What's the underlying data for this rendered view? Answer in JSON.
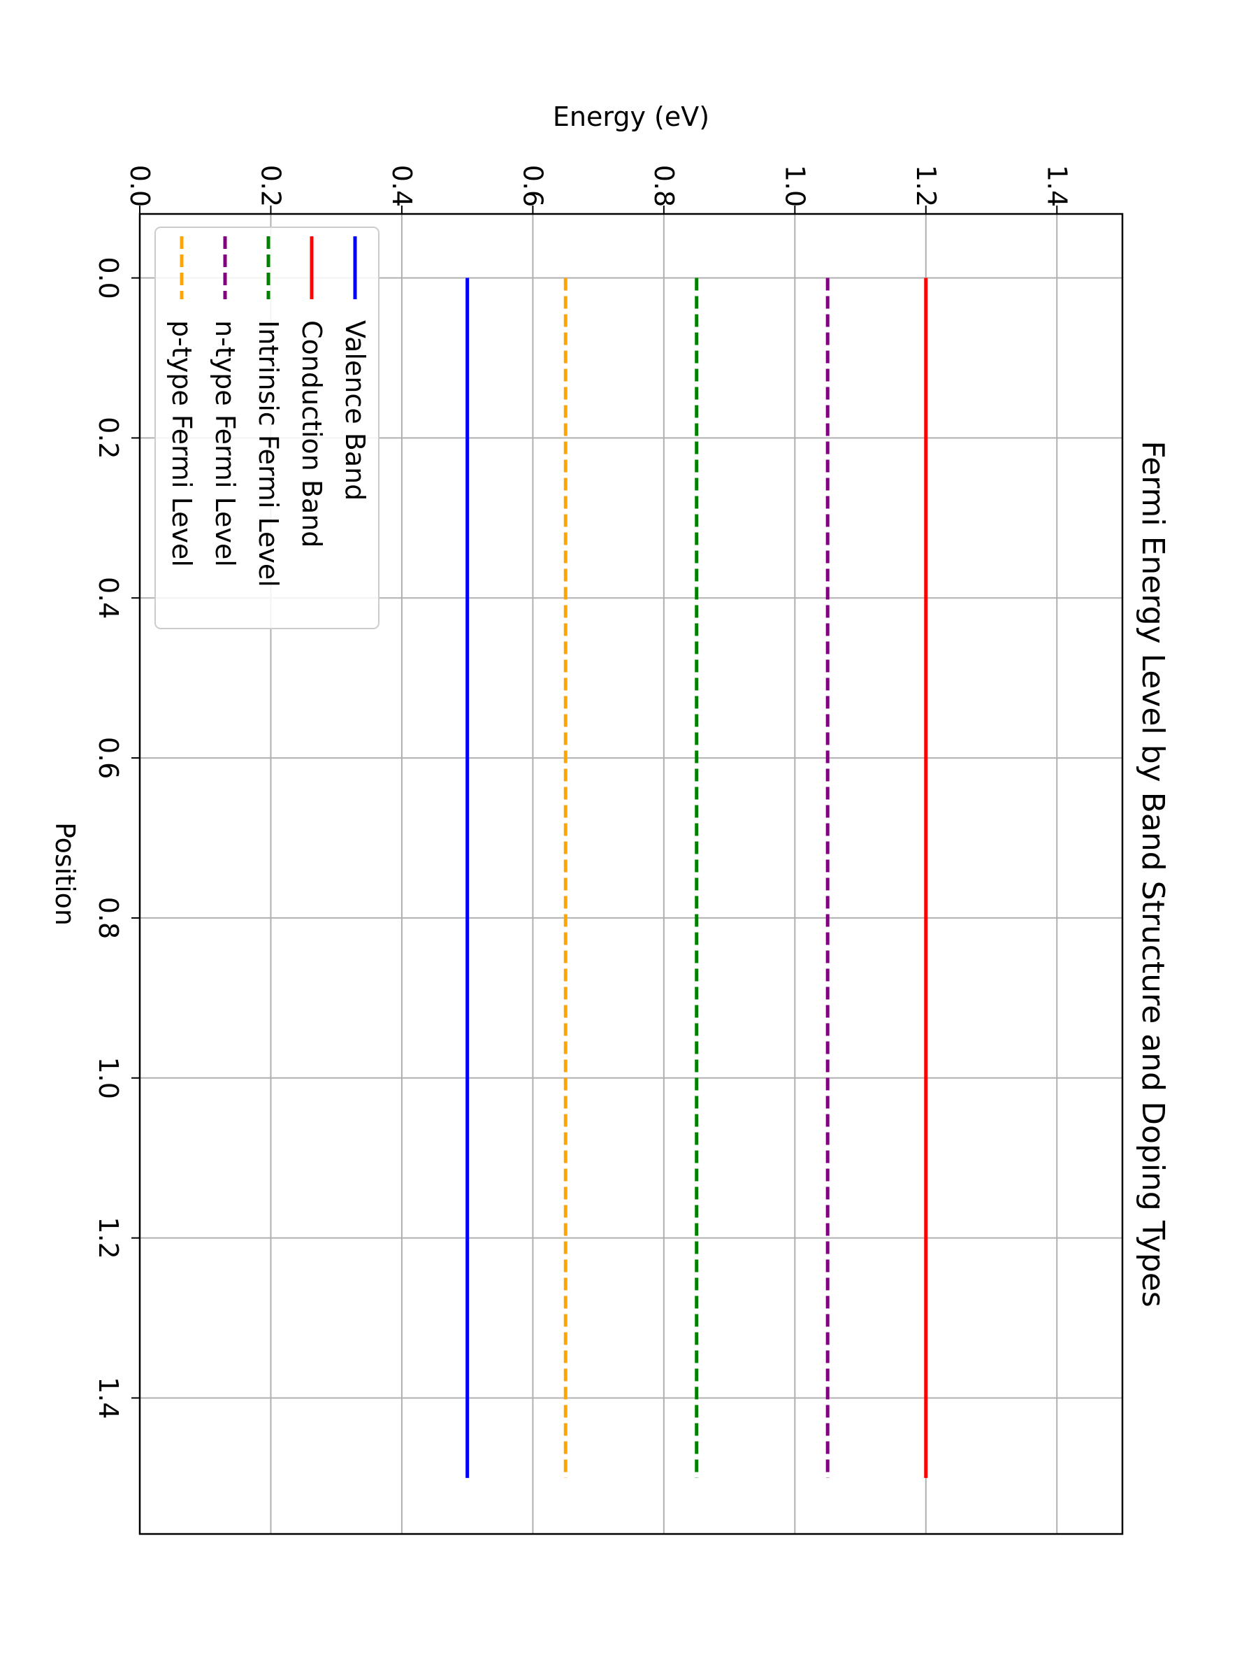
{
  "chart_data": {
    "type": "line",
    "orientation": "rotated 90 degrees clockwise",
    "title": "Fermi Energy Level by Band Structure and Doping Types",
    "xlabel": "Position",
    "ylabel": "Energy (eV)",
    "xlim": [
      -0.08,
      1.57
    ],
    "ylim": [
      0.0,
      1.5
    ],
    "xticks": [
      "0.0",
      "0.2",
      "0.4",
      "0.6",
      "0.8",
      "1.0",
      "1.2",
      "1.4"
    ],
    "yticks": [
      "0.0",
      "0.2",
      "0.4",
      "0.6",
      "0.8",
      "1.0",
      "1.2",
      "1.4"
    ],
    "grid": true,
    "legend_position": "upper left",
    "series": [
      {
        "name": "Valence Band",
        "x": [
          0,
          1.5
        ],
        "values": [
          0.5,
          0.5
        ],
        "color": "#0000ff",
        "linestyle": "solid"
      },
      {
        "name": "Conduction Band",
        "x": [
          0,
          1.5
        ],
        "values": [
          1.2,
          1.2
        ],
        "color": "#ff0000",
        "linestyle": "solid"
      },
      {
        "name": "Intrinsic Fermi Level",
        "x": [
          0,
          1.5
        ],
        "values": [
          0.85,
          0.85
        ],
        "color": "#008000",
        "linestyle": "dashed"
      },
      {
        "name": "n-type Fermi Level",
        "x": [
          0,
          1.5
        ],
        "values": [
          1.05,
          1.05
        ],
        "color": "#800080",
        "linestyle": "dashed"
      },
      {
        "name": "p-type Fermi Level",
        "x": [
          0,
          1.5
        ],
        "values": [
          0.65,
          0.65
        ],
        "color": "#ffa500",
        "linestyle": "dashed"
      }
    ]
  }
}
